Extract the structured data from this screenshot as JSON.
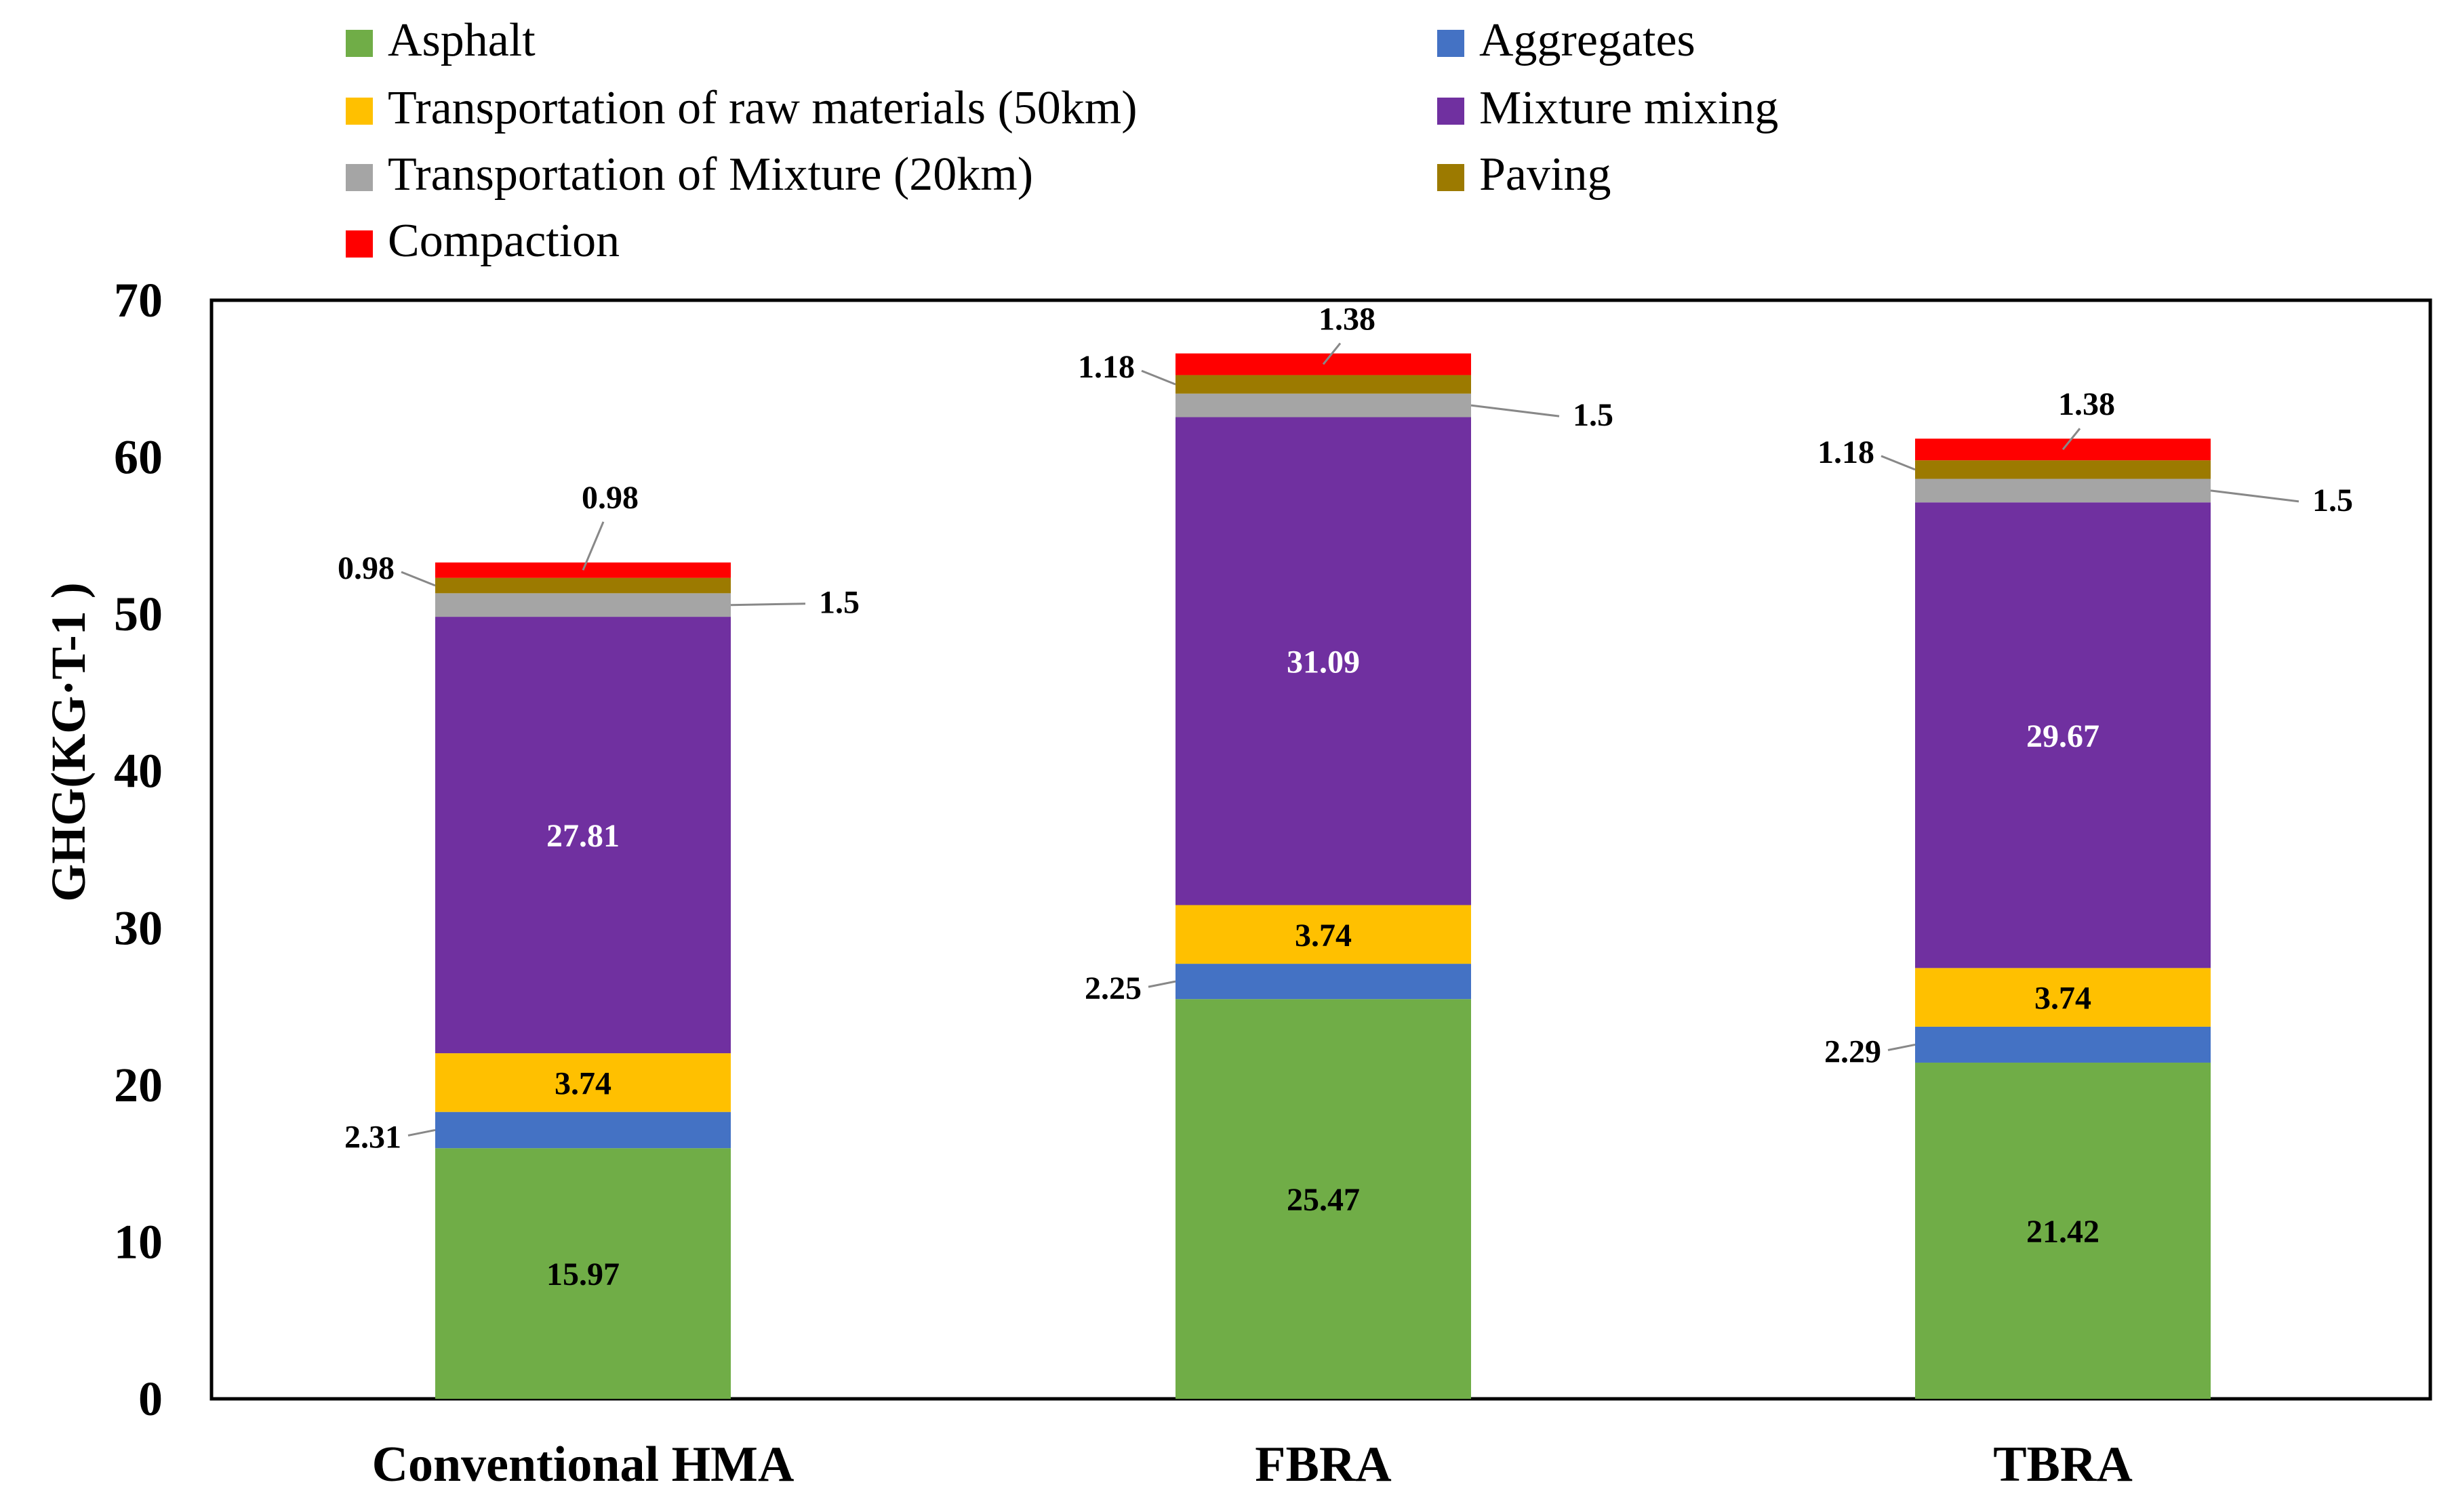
{
  "chart_data": {
    "type": "stacked-bar",
    "title": "",
    "xlabel": "",
    "ylabel": "GHG(KG·T-1 )",
    "ylim": [
      0,
      70
    ],
    "yticks": [
      0,
      10,
      20,
      30,
      40,
      50,
      60,
      70
    ],
    "grid": false,
    "legend_position": "top",
    "categories": [
      "Conventional HMA",
      "FBRA",
      "TBRA"
    ],
    "series": [
      {
        "name": "Asphalt",
        "color": "#70AD47",
        "values": [
          15.97,
          25.47,
          21.42
        ],
        "labels": [
          "15.97",
          "25.47",
          "21.42"
        ]
      },
      {
        "name": "Aggregates",
        "color": "#4472C4",
        "values": [
          2.31,
          2.25,
          2.29
        ],
        "labels": [
          "2.31",
          "2.25",
          "2.29"
        ]
      },
      {
        "name": "Transportation of raw materials (50km)",
        "color": "#FFC000",
        "values": [
          3.74,
          3.74,
          3.74
        ],
        "labels": [
          "3.74",
          "3.74",
          "3.74"
        ]
      },
      {
        "name": "Mixture mixing",
        "color": "#7030A0",
        "values": [
          27.81,
          31.09,
          29.67
        ],
        "labels": [
          "27.81",
          "31.09",
          "29.67"
        ]
      },
      {
        "name": "Transportation of Mixture (20km)",
        "color": "#A5A5A5",
        "values": [
          1.5,
          1.5,
          1.5
        ],
        "labels": [
          "1.5",
          "1.5",
          "1.5"
        ]
      },
      {
        "name": "Paving",
        "color": "#9C7A00",
        "values": [
          0.98,
          1.18,
          1.18
        ],
        "labels": [
          "0.98",
          "1.18",
          "1.18"
        ]
      },
      {
        "name": "Compaction",
        "color": "#FF0000",
        "values": [
          0.98,
          1.38,
          1.38
        ],
        "labels": [
          "0.98",
          "1.38",
          "1.38"
        ]
      }
    ]
  }
}
